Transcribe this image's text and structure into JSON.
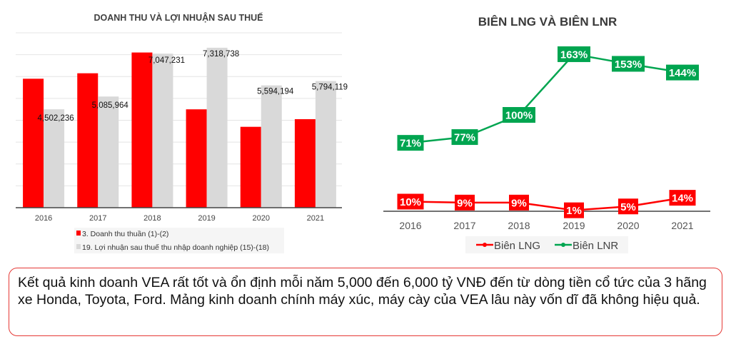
{
  "chart_data": [
    {
      "type": "bar",
      "title": "DOANH THU VÀ LỢI NHUẬN SAU THUẾ",
      "categories": [
        "2016",
        "2017",
        "2018",
        "2019",
        "2020",
        "2021"
      ],
      "ylim": [
        0,
        8000000
      ],
      "grid": true,
      "legend_position": "bottom",
      "series": [
        {
          "name": "3. Doanh thu thuần (1)-(2)",
          "color": "#ff0000",
          "values": [
            5900000,
            6150000,
            7100000,
            4500000,
            3700000,
            4050000
          ],
          "labels": [
            "",
            "",
            "",
            "",
            "",
            ""
          ]
        },
        {
          "name": "19. Lợi nhuận sau thuế thu nhập doanh nghiệp (15)-(18)",
          "color": "#d9d9d9",
          "values": [
            4502236,
            5085964,
            7047231,
            7318738,
            5594194,
            5794119
          ],
          "labels": [
            "4,502,236",
            "5,085,964",
            "7,047,231",
            "7,318,738",
            "5,594,194",
            "5,794,119"
          ]
        }
      ]
    },
    {
      "type": "line",
      "title": "BIÊN LNG VÀ BIÊN LNR",
      "categories": [
        "2016",
        "2017",
        "2018",
        "2019",
        "2020",
        "2021"
      ],
      "legend_position": "bottom",
      "series": [
        {
          "name": "Biên LNG",
          "color": "#ff0000",
          "values": [
            10,
            9,
            9,
            1,
            5,
            14
          ],
          "labels": [
            "10%",
            "9%",
            "9%",
            "1%",
            "5%",
            "14%"
          ]
        },
        {
          "name": "Biên LNR",
          "color": "#00a550",
          "values": [
            71,
            77,
            100,
            163,
            153,
            144
          ],
          "labels": [
            "71%",
            "77%",
            "100%",
            "163%",
            "153%",
            "144%"
          ]
        }
      ]
    }
  ],
  "note": "Kết quả kinh doanh VEA rất tốt và ổn định mỗi năm 5,000 đến 6,000 tỷ VNĐ  đến từ dòng tiền cổ tức của 3 hãng xe Honda, Toyota, Ford. Mảng kinh doanh chính máy xúc, máy cày của VEA lâu này vốn dĩ đã không hiệu quả."
}
